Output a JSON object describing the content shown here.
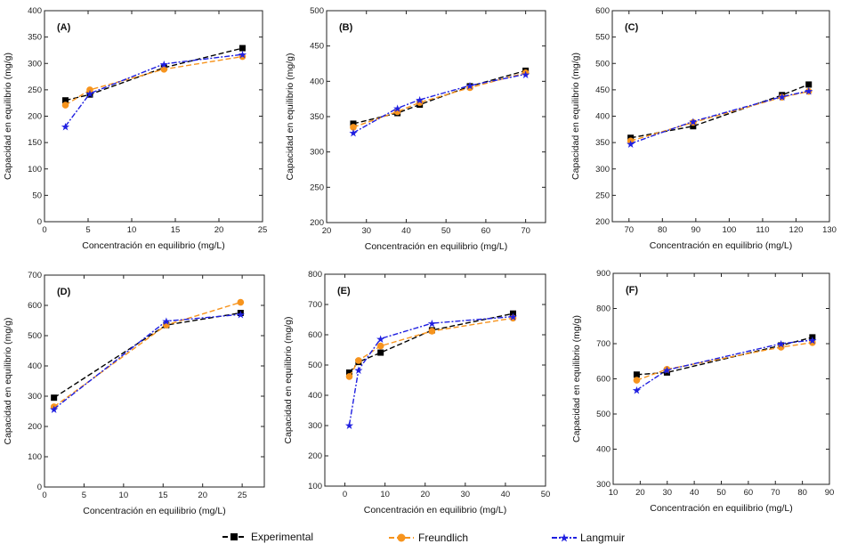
{
  "legend": {
    "experimental": "Experimental",
    "freundlich": "Freundlich",
    "langmuir": "Langmuir"
  },
  "colors": {
    "experimental": "#000000",
    "freundlich": "#f7941d",
    "langmuir": "#1f1fe0"
  },
  "chart_data": [
    {
      "type": "line",
      "panel": "(A)",
      "xlabel": "Concentración en equilibrio (mg/L)",
      "ylabel": "Capacidad en equilibrio (mg/g)",
      "xlim": [
        0,
        25
      ],
      "ylim": [
        0,
        400
      ],
      "xticks": [
        0,
        5,
        10,
        15,
        20,
        25
      ],
      "yticks": [
        0,
        50,
        100,
        150,
        200,
        250,
        300,
        350,
        400
      ],
      "x": [
        2.4,
        5.2,
        13.7,
        22.7
      ],
      "series": [
        {
          "name": "Experimental",
          "values": [
            230,
            241,
            292,
            329
          ]
        },
        {
          "name": "Freundlich",
          "values": [
            221,
            250,
            289,
            313
          ]
        },
        {
          "name": "Langmuir",
          "values": [
            181,
            243,
            299,
            317
          ]
        }
      ]
    },
    {
      "type": "line",
      "panel": "(B)",
      "xlabel": "Concentración en equilibrio (mg/L)",
      "ylabel": "Capacidad en equilibrio (mg/g)",
      "xlim": [
        20,
        75
      ],
      "ylim": [
        200,
        500
      ],
      "xticks": [
        20,
        30,
        40,
        50,
        60,
        70
      ],
      "yticks": [
        200,
        250,
        300,
        350,
        400,
        450,
        500
      ],
      "x": [
        26.7,
        37.8,
        43.4,
        56,
        70
      ],
      "series": [
        {
          "name": "Experimental",
          "values": [
            340,
            355,
            367,
            393,
            415
          ]
        },
        {
          "name": "Freundlich",
          "values": [
            335,
            357,
            370,
            391,
            412
          ]
        },
        {
          "name": "Langmuir",
          "values": [
            327,
            362,
            374,
            394,
            410
          ]
        }
      ]
    },
    {
      "type": "line",
      "panel": "(C)",
      "xlabel": "Concentración en equilibrio (mg/L)",
      "ylabel": "Capacidad en equilibrio (mg/g)",
      "xlim": [
        65,
        130
      ],
      "ylim": [
        200,
        600
      ],
      "xticks": [
        70,
        80,
        90,
        100,
        110,
        120,
        130
      ],
      "yticks": [
        200,
        250,
        300,
        350,
        400,
        450,
        500,
        550,
        600
      ],
      "x": [
        70.5,
        89.2,
        115.8,
        123.8
      ],
      "series": [
        {
          "name": "Experimental",
          "values": [
            359,
            381,
            440,
            460
          ]
        },
        {
          "name": "Freundlich",
          "values": [
            353,
            388,
            436,
            447
          ]
        },
        {
          "name": "Langmuir",
          "values": [
            348,
            390,
            437,
            448
          ]
        }
      ]
    },
    {
      "type": "line",
      "panel": "(D)",
      "xlabel": "Concentración en equilibrio (mg/L)",
      "ylabel": "Capacidad en equilibrio (mg/g)",
      "xlim": [
        0,
        27.8
      ],
      "ylim": [
        0,
        700
      ],
      "xticks": [
        0,
        5,
        10,
        15,
        20,
        25
      ],
      "yticks": [
        0,
        100,
        200,
        300,
        400,
        500,
        600,
        700
      ],
      "x": [
        1.2,
        15.4,
        24.8
      ],
      "series": [
        {
          "name": "Experimental",
          "values": [
            295,
            535,
            575
          ]
        },
        {
          "name": "Freundlich",
          "values": [
            265,
            535,
            610
          ]
        },
        {
          "name": "Langmuir",
          "values": [
            258,
            548,
            570
          ]
        }
      ]
    },
    {
      "type": "line",
      "panel": "(E)",
      "xlabel": "Concentración en equilibrio (mg/L)",
      "ylabel": "Capacidad en equilibrio (mg/g)",
      "xlim": [
        -5,
        50
      ],
      "ylim": [
        100,
        800
      ],
      "xticks": [
        0,
        10,
        20,
        30,
        40,
        50
      ],
      "yticks": [
        100,
        200,
        300,
        400,
        500,
        600,
        700,
        800
      ],
      "x": [
        1.1,
        3.4,
        8.9,
        21.7,
        41.9
      ],
      "series": [
        {
          "name": "Experimental",
          "values": [
            475,
            510,
            541,
            615,
            670
          ]
        },
        {
          "name": "Freundlich",
          "values": [
            462,
            515,
            563,
            612,
            655
          ]
        },
        {
          "name": "Langmuir",
          "values": [
            302,
            484,
            587,
            638,
            660
          ]
        }
      ]
    },
    {
      "type": "line",
      "panel": "(F)",
      "xlabel": "Concentración en equilibrio (mg/L)",
      "ylabel": "Capacidad en equilibrio (mg/g)",
      "xlim": [
        10,
        90
      ],
      "ylim": [
        300,
        900
      ],
      "xticks": [
        10,
        20,
        30,
        40,
        50,
        60,
        70,
        80,
        90
      ],
      "yticks": [
        300,
        400,
        500,
        600,
        700,
        800,
        900
      ],
      "x": [
        18.7,
        29.9,
        72.1,
        83.7
      ],
      "series": [
        {
          "name": "Experimental",
          "values": [
            612,
            618,
            695,
            718
          ]
        },
        {
          "name": "Freundlich",
          "values": [
            596,
            627,
            690,
            703
          ]
        },
        {
          "name": "Langmuir",
          "values": [
            568,
            625,
            700,
            710
          ]
        }
      ]
    }
  ]
}
